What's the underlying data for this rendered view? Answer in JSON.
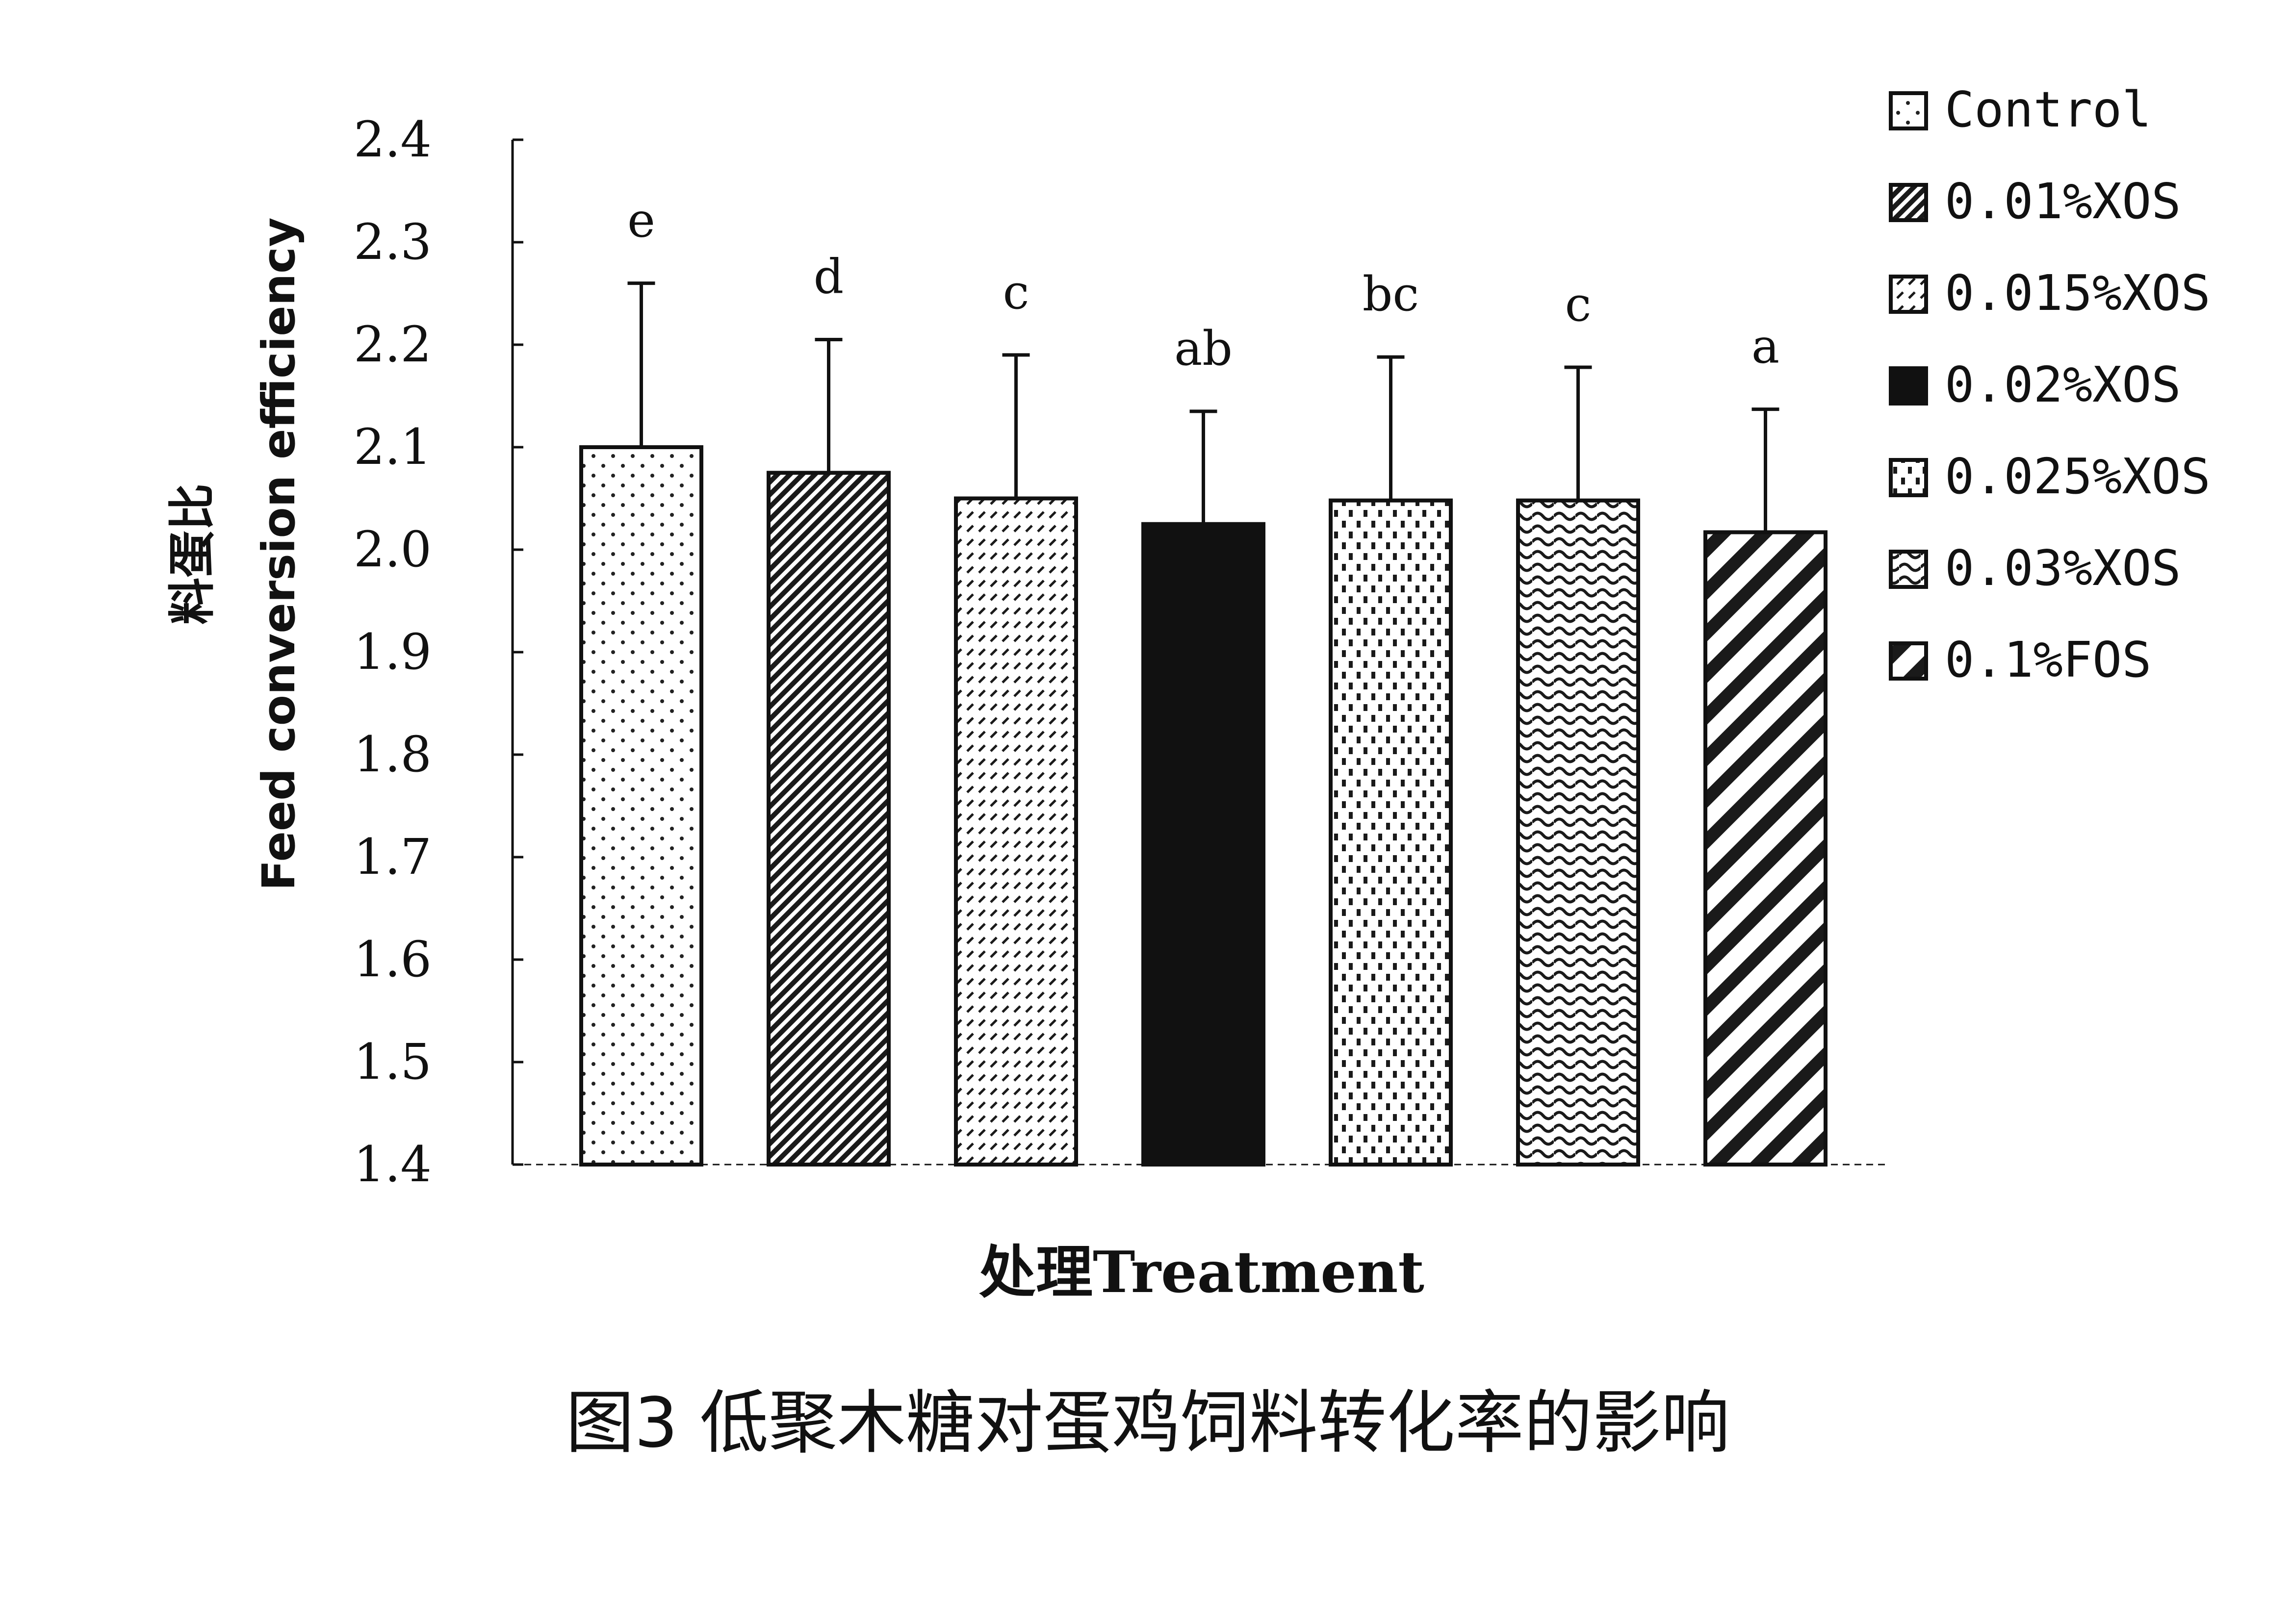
{
  "caption": "图3 低聚木糖对蛋鸡饲料转化率的影响",
  "chart_data": {
    "type": "bar",
    "title": "",
    "ylabel_cn": "料蛋比",
    "ylabel_en": "Feed conversion efficiency",
    "xlabel": "处理Treatment",
    "ylim": [
      1.4,
      2.4
    ],
    "yticks": [
      "2.4",
      "2.3",
      "2.2",
      "2.1",
      "2.0",
      "1.9",
      "1.8",
      "1.7",
      "1.6",
      "1.5",
      "1.4"
    ],
    "legend_position": "top-right",
    "series": [
      {
        "name": "Control",
        "value": 2.1,
        "error": 0.16,
        "letter": "e",
        "pattern": "dots"
      },
      {
        "name": "0.01%XOS",
        "value": 2.075,
        "error": 0.13,
        "letter": "d",
        "pattern": "diag-dense"
      },
      {
        "name": "0.015%XOS",
        "value": 2.05,
        "error": 0.14,
        "letter": "c",
        "pattern": "dashes"
      },
      {
        "name": "0.02%XOS",
        "value": 2.025,
        "error": 0.11,
        "letter": "ab",
        "pattern": "solid"
      },
      {
        "name": "0.025%XOS",
        "value": 2.048,
        "error": 0.14,
        "letter": "bc",
        "pattern": "vdots"
      },
      {
        "name": "0.03%XOS",
        "value": 2.048,
        "error": 0.13,
        "letter": "c",
        "pattern": "waves"
      },
      {
        "name": "0.1%FOS",
        "value": 2.017,
        "error": 0.12,
        "letter": "a",
        "pattern": "diag-wide"
      }
    ]
  }
}
